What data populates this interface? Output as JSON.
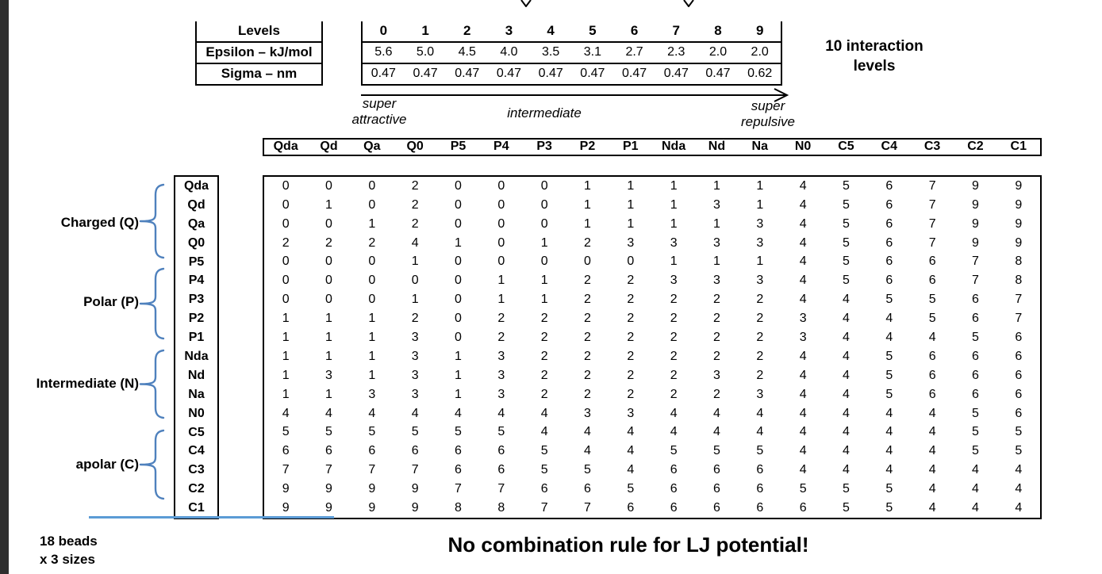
{
  "slide": {
    "colors": {
      "accent_blue": "#4f81bd",
      "underline_blue": "#5b9bd5",
      "edge_strip": "#2f2f2f"
    }
  },
  "parameter_table": {
    "row_labels": [
      "Levels",
      "Epsilon – kJ/mol",
      "Sigma – nm"
    ],
    "levels": [
      "0",
      "1",
      "2",
      "3",
      "4",
      "5",
      "6",
      "7",
      "8",
      "9"
    ],
    "epsilon_kj_mol": [
      "5.6",
      "5.0",
      "4.5",
      "4.0",
      "3.5",
      "3.1",
      "2.7",
      "2.3",
      "2.0",
      "2.0"
    ],
    "sigma_nm": [
      "0.47",
      "0.47",
      "0.47",
      "0.47",
      "0.47",
      "0.47",
      "0.47",
      "0.47",
      "0.47",
      "0.62"
    ]
  },
  "interaction_note_lines": [
    "10 interaction",
    "levels"
  ],
  "spectrum": {
    "left_label_lines": [
      "super",
      "attractive"
    ],
    "center_label": "intermediate",
    "right_label_lines": [
      "super",
      "repulsive"
    ]
  },
  "matrix": {
    "col_headers": [
      "Qda",
      "Qd",
      "Qa",
      "Q0",
      "P5",
      "P4",
      "P3",
      "P2",
      "P1",
      "Nda",
      "Nd",
      "Na",
      "N0",
      "C5",
      "C4",
      "C3",
      "C2",
      "C1"
    ],
    "row_headers": [
      "Qda",
      "Qd",
      "Qa",
      "Q0",
      "P5",
      "P4",
      "P3",
      "P2",
      "P1",
      "Nda",
      "Nd",
      "Na",
      "N0",
      "C5",
      "C4",
      "C3",
      "C2",
      "C1"
    ],
    "values": [
      [
        0,
        0,
        0,
        2,
        0,
        0,
        0,
        1,
        1,
        1,
        1,
        1,
        4,
        5,
        6,
        7,
        9,
        9
      ],
      [
        0,
        1,
        0,
        2,
        0,
        0,
        0,
        1,
        1,
        1,
        3,
        1,
        4,
        5,
        6,
        7,
        9,
        9
      ],
      [
        0,
        0,
        1,
        2,
        0,
        0,
        0,
        1,
        1,
        1,
        1,
        3,
        4,
        5,
        6,
        7,
        9,
        9
      ],
      [
        2,
        2,
        2,
        4,
        1,
        0,
        1,
        2,
        3,
        3,
        3,
        3,
        4,
        5,
        6,
        7,
        9,
        9
      ],
      [
        0,
        0,
        0,
        1,
        0,
        0,
        0,
        0,
        0,
        1,
        1,
        1,
        4,
        5,
        6,
        6,
        7,
        8
      ],
      [
        0,
        0,
        0,
        0,
        0,
        1,
        1,
        2,
        2,
        3,
        3,
        3,
        4,
        5,
        6,
        6,
        7,
        8
      ],
      [
        0,
        0,
        0,
        1,
        0,
        1,
        1,
        2,
        2,
        2,
        2,
        2,
        4,
        4,
        5,
        5,
        6,
        7
      ],
      [
        1,
        1,
        1,
        2,
        0,
        2,
        2,
        2,
        2,
        2,
        2,
        2,
        3,
        4,
        4,
        5,
        6,
        7
      ],
      [
        1,
        1,
        1,
        3,
        0,
        2,
        2,
        2,
        2,
        2,
        2,
        2,
        3,
        4,
        4,
        4,
        5,
        6
      ],
      [
        1,
        1,
        1,
        3,
        1,
        3,
        2,
        2,
        2,
        2,
        2,
        2,
        4,
        4,
        5,
        6,
        6,
        6
      ],
      [
        1,
        3,
        1,
        3,
        1,
        3,
        2,
        2,
        2,
        2,
        3,
        2,
        4,
        4,
        5,
        6,
        6,
        6
      ],
      [
        1,
        1,
        3,
        3,
        1,
        3,
        2,
        2,
        2,
        2,
        2,
        3,
        4,
        4,
        5,
        6,
        6,
        6
      ],
      [
        4,
        4,
        4,
        4,
        4,
        4,
        4,
        3,
        3,
        4,
        4,
        4,
        4,
        4,
        4,
        4,
        5,
        6
      ],
      [
        5,
        5,
        5,
        5,
        5,
        5,
        4,
        4,
        4,
        4,
        4,
        4,
        4,
        4,
        4,
        4,
        5,
        5
      ],
      [
        6,
        6,
        6,
        6,
        6,
        6,
        5,
        4,
        4,
        5,
        5,
        5,
        4,
        4,
        4,
        4,
        5,
        5
      ],
      [
        7,
        7,
        7,
        7,
        6,
        6,
        5,
        5,
        4,
        6,
        6,
        6,
        4,
        4,
        4,
        4,
        4,
        4
      ],
      [
        9,
        9,
        9,
        9,
        7,
        7,
        6,
        6,
        5,
        6,
        6,
        6,
        5,
        5,
        5,
        4,
        4,
        4
      ],
      [
        9,
        9,
        9,
        9,
        8,
        8,
        7,
        7,
        6,
        6,
        6,
        6,
        6,
        5,
        5,
        4,
        4,
        4
      ]
    ]
  },
  "bead_groups": [
    {
      "label": "Charged (Q)"
    },
    {
      "label": "Polar (P)"
    },
    {
      "label": "Intermediate (N)"
    },
    {
      "label": "apolar (C)"
    }
  ],
  "footer": {
    "beads_lines": [
      "18 beads",
      "x 3 sizes"
    ],
    "note": "No combination rule for LJ potential!"
  }
}
